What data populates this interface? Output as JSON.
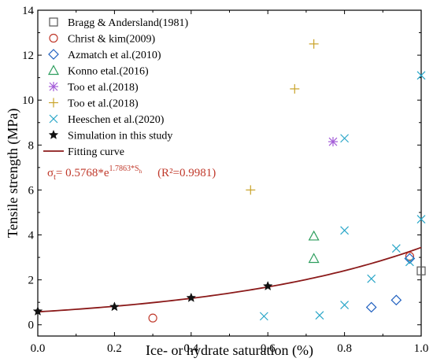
{
  "chart_data": {
    "type": "scatter",
    "xlabel": "Ice- or hydrate saturation (%)",
    "ylabel": "Tensile strength (MPa)",
    "xlim": [
      0,
      1
    ],
    "ylim": [
      -0.5,
      14
    ],
    "x_ticks": [
      0.0,
      0.2,
      0.4,
      0.6,
      0.8,
      1.0
    ],
    "x_tick_labels": [
      "0.0",
      "0.2",
      "0.4",
      "0.6",
      "0.8",
      "1.0"
    ],
    "y_ticks": [
      0,
      2,
      4,
      6,
      8,
      10,
      12,
      14
    ],
    "y_tick_labels": [
      "0",
      "2",
      "4",
      "6",
      "8",
      "10",
      "12",
      "14"
    ],
    "grid": false,
    "legend_position": "top-left",
    "series": [
      {
        "name": "Bragg & Andersland(1981)",
        "marker": "square",
        "color": "#555555",
        "points": [
          {
            "x": 1.0,
            "y": 2.4
          }
        ]
      },
      {
        "name": "Christ & kim(2009)",
        "marker": "circle",
        "color": "#c0392b",
        "points": [
          {
            "x": 0.3,
            "y": 0.3
          },
          {
            "x": 0.97,
            "y": 3.05
          }
        ]
      },
      {
        "name": "Azmatch et al.(2010)",
        "marker": "diamond",
        "color": "#1f5fbf",
        "points": [
          {
            "x": 0.87,
            "y": 0.78
          },
          {
            "x": 0.935,
            "y": 1.1
          },
          {
            "x": 0.97,
            "y": 2.95
          }
        ]
      },
      {
        "name": "Konno etal.(2016)",
        "marker": "triangle",
        "color": "#2e9e5e",
        "points": [
          {
            "x": 0.72,
            "y": 3.95
          },
          {
            "x": 0.72,
            "y": 2.95
          }
        ]
      },
      {
        "name": "Too et al.(2018)",
        "marker": "asterisk",
        "color": "#a35bd8",
        "points": [
          {
            "x": 0.77,
            "y": 8.15
          }
        ]
      },
      {
        "name": "Too et al.(2018)",
        "marker": "plus",
        "color": "#c9a227",
        "points": [
          {
            "x": 0.555,
            "y": 6.0
          },
          {
            "x": 0.67,
            "y": 10.5
          },
          {
            "x": 0.72,
            "y": 12.5
          }
        ]
      },
      {
        "name": "Heeschen et al.(2020)",
        "marker": "x",
        "color": "#2aa6c8",
        "points": [
          {
            "x": 0.59,
            "y": 0.38
          },
          {
            "x": 0.735,
            "y": 0.42
          },
          {
            "x": 0.8,
            "y": 0.88
          },
          {
            "x": 0.8,
            "y": 4.2
          },
          {
            "x": 0.8,
            "y": 8.3
          },
          {
            "x": 0.87,
            "y": 2.05
          },
          {
            "x": 0.935,
            "y": 3.4
          },
          {
            "x": 0.97,
            "y": 2.8
          },
          {
            "x": 1.0,
            "y": 4.7
          },
          {
            "x": 1.0,
            "y": 11.1
          }
        ]
      },
      {
        "name": "Simulation in this study",
        "marker": "star",
        "color": "#111111",
        "points": [
          {
            "x": 0.0,
            "y": 0.6
          },
          {
            "x": 0.2,
            "y": 0.8
          },
          {
            "x": 0.4,
            "y": 1.2
          },
          {
            "x": 0.6,
            "y": 1.72
          }
        ]
      }
    ],
    "fit": {
      "name": "Fitting curve",
      "color": "#8b1a1a",
      "a": 0.5768,
      "b": 1.7863,
      "x_range": [
        0,
        1
      ]
    },
    "annotation": {
      "sigma": "σ",
      "sigma_sub": "t",
      "eq_main": "= 0.5768*e",
      "eq_sup": "1.7863*S",
      "eq_sup_sub": "h",
      "r2": "(R²=0.9981)"
    }
  }
}
